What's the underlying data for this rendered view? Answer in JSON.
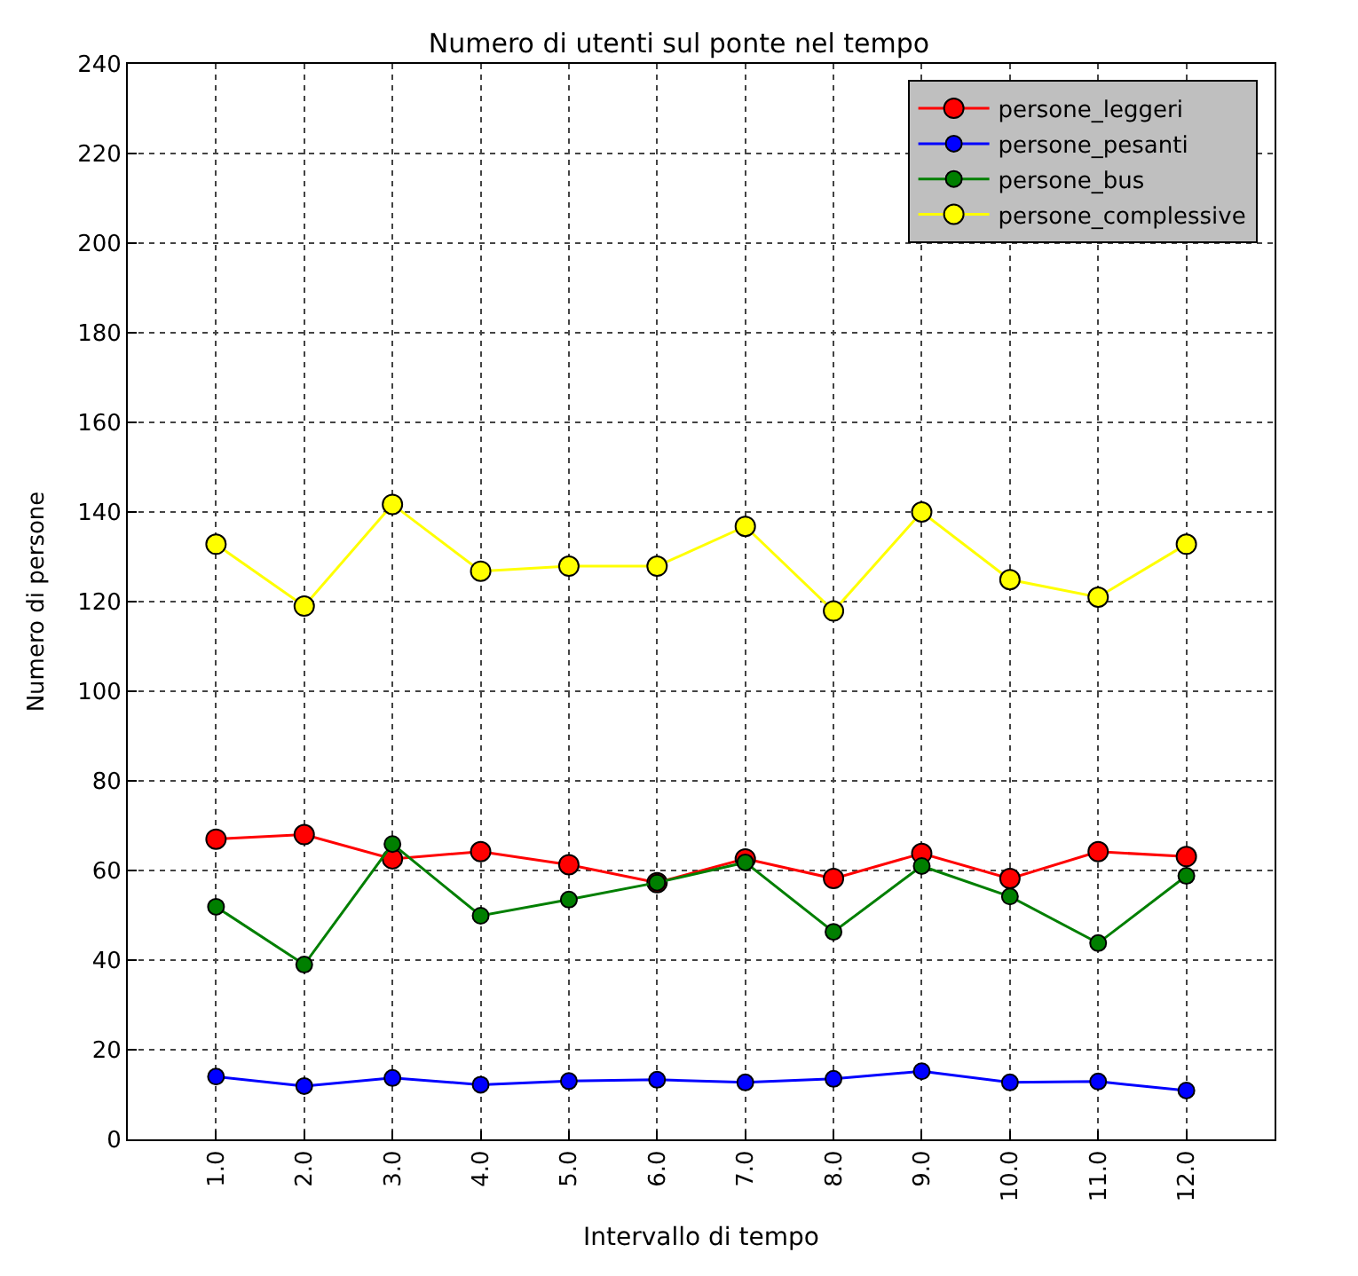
{
  "chart_data": {
    "type": "line",
    "title": "Numero di utenti sul ponte nel tempo",
    "xlabel": "Intervallo di tempo",
    "ylabel": "Numero di persone",
    "x": [
      1,
      2,
      3,
      4,
      5,
      6,
      7,
      8,
      9,
      10,
      11,
      12
    ],
    "xlim": [
      0,
      13
    ],
    "xticks": [
      {
        "value": 1,
        "label": "1.0"
      },
      {
        "value": 2,
        "label": "2.0"
      },
      {
        "value": 3,
        "label": "3.0"
      },
      {
        "value": 4,
        "label": "4.0"
      },
      {
        "value": 5,
        "label": "5.0"
      },
      {
        "value": 6,
        "label": "6.0"
      },
      {
        "value": 7,
        "label": "7.0"
      },
      {
        "value": 8,
        "label": "8.0"
      },
      {
        "value": 9,
        "label": "9.0"
      },
      {
        "value": 10,
        "label": "10.0"
      },
      {
        "value": 11,
        "label": "11.0"
      },
      {
        "value": 12,
        "label": "12.0"
      }
    ],
    "ylim": [
      0,
      240
    ],
    "yticks": [
      0,
      20,
      40,
      60,
      80,
      100,
      120,
      140,
      160,
      180,
      200,
      220,
      240
    ],
    "grid": true,
    "legend": "top right",
    "marker": "circle",
    "line_style": "solid",
    "series": [
      {
        "name": "persone_leggeri",
        "color": "#ff0000",
        "values": [
          67,
          68,
          62.6,
          64.2,
          61.3,
          57.3,
          62.6,
          58.2,
          63.8,
          58.2,
          64.2,
          63.1
        ]
      },
      {
        "name": "persone_pesanti",
        "color": "#0000ff",
        "values": [
          14,
          11.9,
          13.7,
          12.2,
          13,
          13.3,
          12.7,
          13.5,
          15.2,
          12.7,
          12.9,
          10.9
        ]
      },
      {
        "name": "persone_bus",
        "color": "#007f00",
        "values": [
          51.9,
          39,
          65.9,
          49.9,
          53.5,
          57.3,
          61.8,
          46.3,
          61,
          54.2,
          43.8,
          58.8
        ]
      },
      {
        "name": "persone_complessive",
        "color": "#ffff00",
        "values": [
          132.8,
          119,
          141.7,
          126.8,
          127.9,
          127.9,
          136.8,
          117.9,
          140,
          124.9,
          121,
          132.8
        ]
      }
    ]
  }
}
